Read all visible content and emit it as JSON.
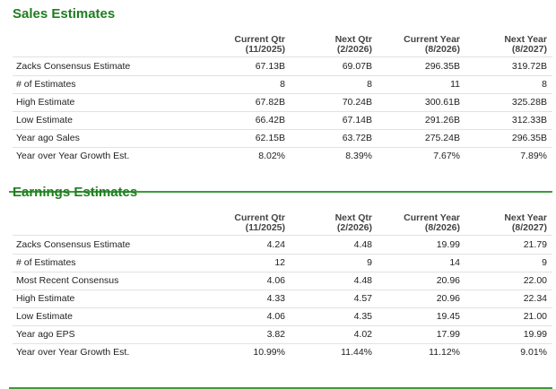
{
  "sections": [
    {
      "title": "Sales Estimates",
      "columns": [
        {
          "label": "Current Qtr",
          "period": "(11/2025)"
        },
        {
          "label": "Next Qtr",
          "period": "(2/2026)"
        },
        {
          "label": "Current Year",
          "period": "(8/2026)"
        },
        {
          "label": "Next Year",
          "period": "(8/2027)"
        }
      ],
      "rows": [
        [
          "Zacks Consensus Estimate",
          "67.13B",
          "69.07B",
          "296.35B",
          "319.72B"
        ],
        [
          "# of Estimates",
          "8",
          "8",
          "11",
          "8"
        ],
        [
          "High Estimate",
          "67.82B",
          "70.24B",
          "300.61B",
          "325.28B"
        ],
        [
          "Low Estimate",
          "66.42B",
          "67.14B",
          "291.26B",
          "312.33B"
        ],
        [
          "Year ago Sales",
          "62.15B",
          "63.72B",
          "275.24B",
          "296.35B"
        ],
        [
          "Year over Year Growth Est.",
          "8.02%",
          "8.39%",
          "7.67%",
          "7.89%"
        ]
      ]
    },
    {
      "title": "Earnings Estimates",
      "columns": [
        {
          "label": "Current Qtr",
          "period": "(11/2025)"
        },
        {
          "label": "Next Qtr",
          "period": "(2/2026)"
        },
        {
          "label": "Current Year",
          "period": "(8/2026)"
        },
        {
          "label": "Next Year",
          "period": "(8/2027)"
        }
      ],
      "rows": [
        [
          "Zacks Consensus Estimate",
          "4.24",
          "4.48",
          "19.99",
          "21.79"
        ],
        [
          "# of Estimates",
          "12",
          "9",
          "14",
          "9"
        ],
        [
          "Most Recent Consensus",
          "4.06",
          "4.48",
          "20.96",
          "22.00"
        ],
        [
          "High Estimate",
          "4.33",
          "4.57",
          "20.96",
          "22.34"
        ],
        [
          "Low Estimate",
          "4.06",
          "4.35",
          "19.45",
          "21.00"
        ],
        [
          "Year ago EPS",
          "3.82",
          "4.02",
          "17.99",
          "19.99"
        ],
        [
          "Year over Year Growth Est.",
          "10.99%",
          "11.44%",
          "11.12%",
          "9.01%"
        ]
      ]
    }
  ]
}
